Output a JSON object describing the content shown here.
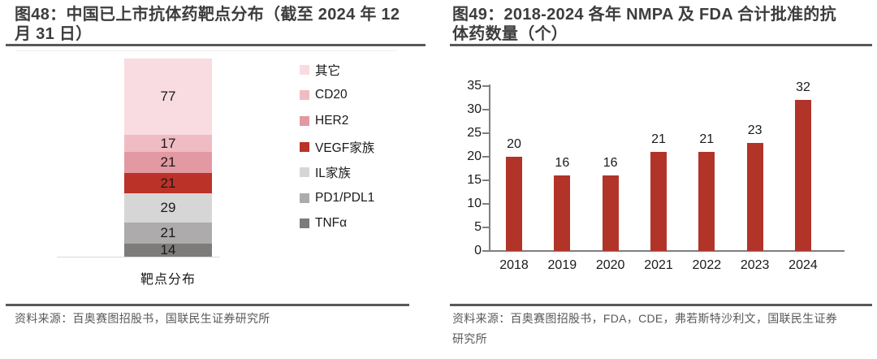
{
  "left_panel": {
    "title": "图48：中国已上市抗体药靶点分布（截至 2024 年 12\n月 31 日）",
    "xlabel": "靶点分布",
    "source": "资料来源：百奥赛图招股书，国联民生证券研究所"
  },
  "right_panel": {
    "title": "图49：2018-2024 各年 NMPA 及 FDA 合计批准的抗\n体药数量（个）",
    "source": "资料来源：百奥赛图招股书，FDA，CDE，弗若斯特沙利文，国联民生证券\n研究所"
  },
  "colors": {
    "title_text": "#3d3d3d",
    "rule": "#595959",
    "source_text": "#595959",
    "axis": "#7f7f7f",
    "accent_red": "#b23429"
  },
  "chart_data": [
    {
      "type": "bar",
      "subtype": "stacked-column",
      "title": "中国已上市抗体药靶点分布（截至 2024 年 12 月 31 日）",
      "categories": [
        "靶点分布"
      ],
      "xlabel": "靶点分布",
      "total": 200,
      "legend_position": "right",
      "grid": false,
      "series": [
        {
          "name": "其它",
          "value": 77,
          "color": "#f8dce2"
        },
        {
          "name": "CD20",
          "value": 17,
          "color": "#f0bcc4"
        },
        {
          "name": "HER2",
          "value": 21,
          "color": "#e399a2"
        },
        {
          "name": "VEGF家族",
          "value": 21,
          "color": "#bb3228"
        },
        {
          "name": "IL家族",
          "value": 29,
          "color": "#d7d6d6"
        },
        {
          "name": "PD1/PDL1",
          "value": 21,
          "color": "#adabab"
        },
        {
          "name": "TNFα",
          "value": 14,
          "color": "#7e7b7b"
        }
      ]
    },
    {
      "type": "bar",
      "title": "2018-2024 各年 NMPA 及 FDA 合计批准的抗体药数量（个）",
      "categories": [
        "2018",
        "2019",
        "2020",
        "2021",
        "2022",
        "2023",
        "2024"
      ],
      "values": [
        20,
        16,
        16,
        21,
        21,
        23,
        32
      ],
      "bar_color": "#b23429",
      "ylim": [
        0,
        35
      ],
      "yticks": [
        0,
        5,
        10,
        15,
        20,
        25,
        30,
        35
      ],
      "grid": false,
      "data_labels": true,
      "legend_position": "none"
    }
  ]
}
